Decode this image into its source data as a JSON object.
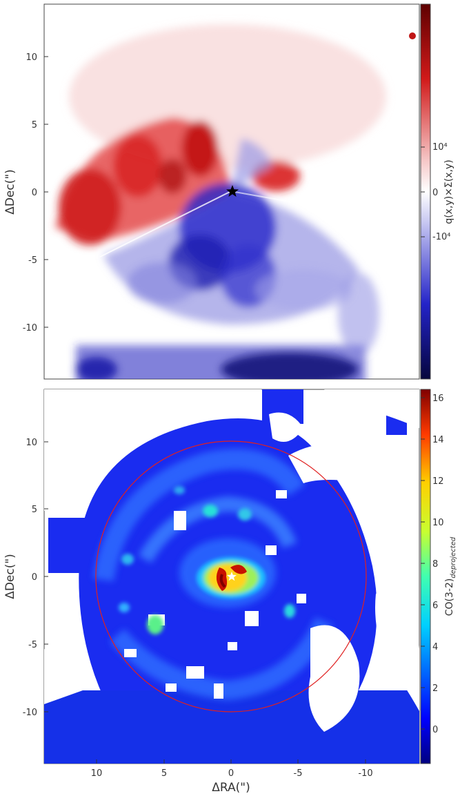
{
  "chart_data": [
    {
      "type": "heatmap",
      "panel": "top",
      "ylabel": "ΔDec(\")",
      "colorbar_label": "q(x,y)×Σ(x,y)",
      "colorbar_ticks": [
        "10⁴",
        "0",
        "-10⁴"
      ],
      "colormap": "red-white-blue (diverging)",
      "yticks": [
        "10",
        "5",
        "0",
        "-5",
        "-10"
      ],
      "xlim": [
        14,
        -14
      ],
      "ylim": [
        -14,
        14
      ],
      "marker": {
        "symbol": "star",
        "x": 0,
        "y": 0,
        "color": "#000000"
      }
    },
    {
      "type": "heatmap",
      "panel": "bottom",
      "xlabel": "ΔRA(\")",
      "ylabel": "ΔDec(\")",
      "colorbar_label": "CO(3-2)",
      "colorbar_label_sub": "deprojected",
      "colorbar_ticks": [
        "16",
        "14",
        "12",
        "10",
        "8",
        "6",
        "4",
        "2",
        "0"
      ],
      "colorbar_range": [
        -1.5,
        16.5
      ],
      "colormap": "jet",
      "xticks": [
        "10",
        "5",
        "0",
        "-5",
        "-10"
      ],
      "yticks": [
        "10",
        "5",
        "0",
        "-5",
        "-10"
      ],
      "xlim": [
        14,
        -14
      ],
      "ylim": [
        -14,
        14
      ],
      "circle": {
        "center": [
          0,
          0
        ],
        "radius": 10,
        "color": "#e02020"
      },
      "marker": {
        "symbol": "star",
        "x": 0,
        "y": 0,
        "color": "#ffffff"
      }
    }
  ],
  "colors": {
    "red": "#d7191c",
    "blue": "#1a1aa6",
    "jet_low": "#00007f",
    "jet_high": "#7f0000"
  }
}
